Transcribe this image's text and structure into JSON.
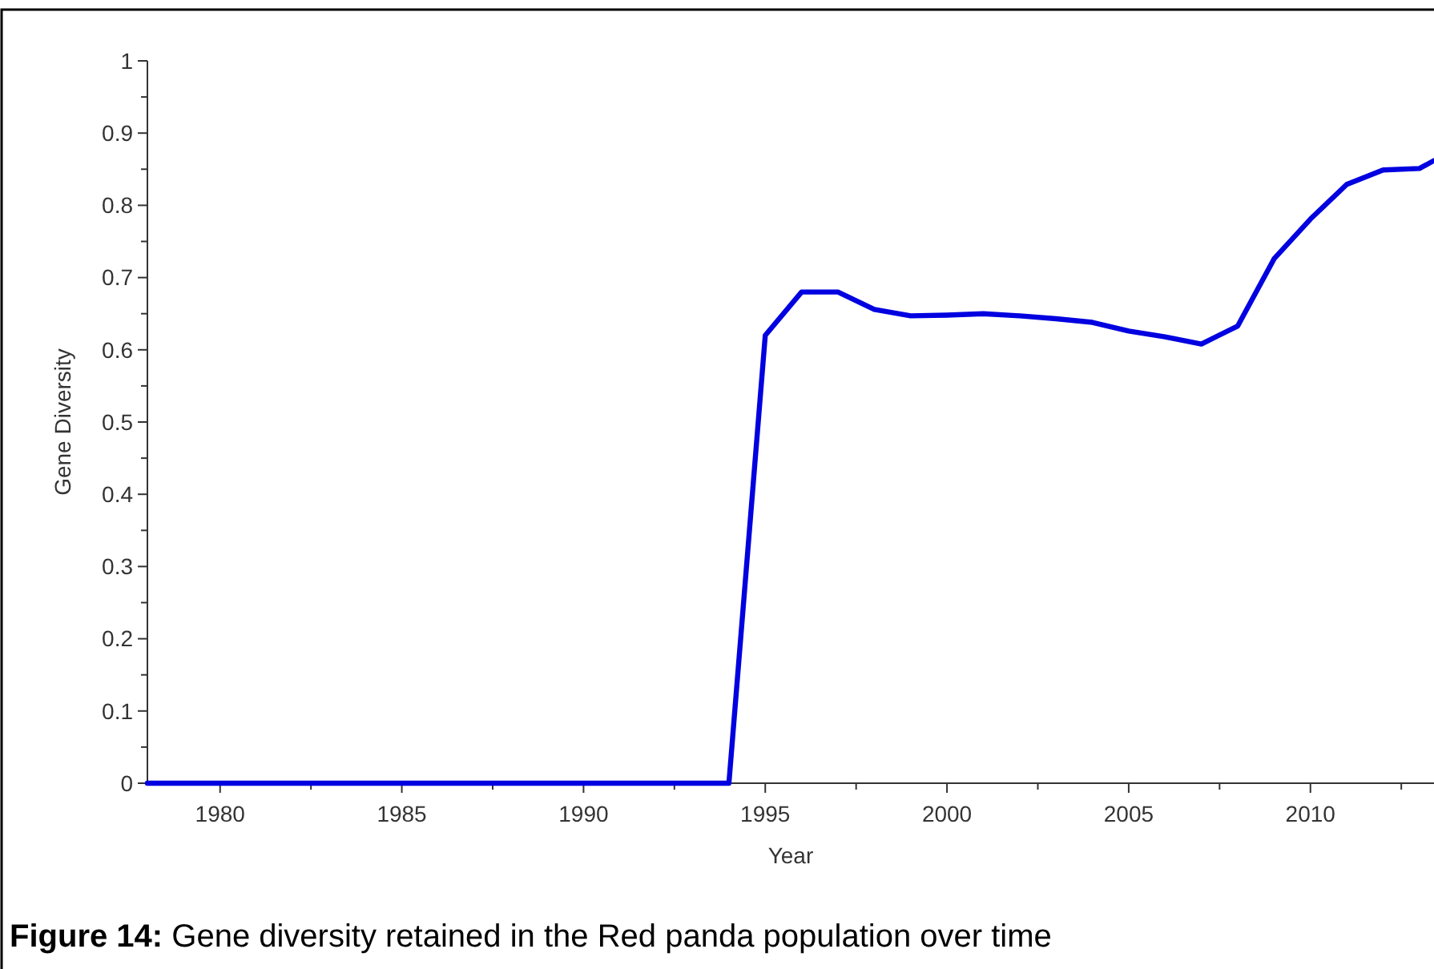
{
  "chart_data": {
    "type": "line",
    "xlabel": "Year",
    "ylabel": "Gene Diversity",
    "annotations": [
      "Figure 14: Gene diversity retained in the Red panda population over time"
    ],
    "x": [
      1978,
      1979,
      1980,
      1981,
      1982,
      1983,
      1984,
      1985,
      1986,
      1987,
      1988,
      1989,
      1990,
      1991,
      1992,
      1993,
      1994,
      1995,
      1996,
      1997,
      1998,
      1999,
      2000,
      2001,
      2002,
      2003,
      2004,
      2005,
      2006,
      2007,
      2008,
      2009,
      2010,
      2011,
      2012,
      2013,
      2013.4
    ],
    "series": [
      {
        "color": "#0000e0",
        "values": [
          0,
          0,
          0,
          0,
          0,
          0,
          0,
          0,
          0,
          0,
          0,
          0,
          0,
          0,
          0,
          0,
          0,
          0.62,
          0.68,
          0.68,
          0.656,
          0.647,
          0.648,
          0.65,
          0.647,
          0.643,
          0.638,
          0.626,
          0.618,
          0.608,
          0.633,
          0.726,
          0.781,
          0.829,
          0.849,
          0.851,
          0.862
        ]
      }
    ],
    "xlim": [
      1978,
      2013.4
    ],
    "ylim": [
      0,
      1
    ],
    "xticks": [
      1980,
      {
        "value": 1982.5,
        "label": null
      },
      1985,
      {
        "value": 1987.5,
        "label": null
      },
      1990,
      {
        "value": 1992.5,
        "label": null
      },
      1995,
      {
        "value": 1997.5,
        "label": null
      },
      2000,
      {
        "value": 2002.5,
        "label": null
      },
      2005,
      {
        "value": 2007.5,
        "label": null
      },
      2010,
      {
        "value": 2012.5,
        "label": null
      }
    ],
    "yticks": [
      0,
      {
        "value": 0.05,
        "label": null
      },
      0.1,
      {
        "value": 0.15,
        "label": null
      },
      0.2,
      {
        "value": 0.25,
        "label": null
      },
      0.3,
      {
        "value": 0.35,
        "label": null
      },
      0.4,
      {
        "value": 0.45,
        "label": null
      },
      0.5,
      {
        "value": 0.55,
        "label": null
      },
      0.6,
      {
        "value": 0.65,
        "label": null
      },
      0.7,
      {
        "value": 0.75,
        "label": null
      },
      0.8,
      {
        "value": 0.85,
        "label": null
      },
      0.9,
      {
        "value": 0.95,
        "label": null
      },
      1
    ],
    "grid": false,
    "marker": "none",
    "line_style": "solid"
  }
}
